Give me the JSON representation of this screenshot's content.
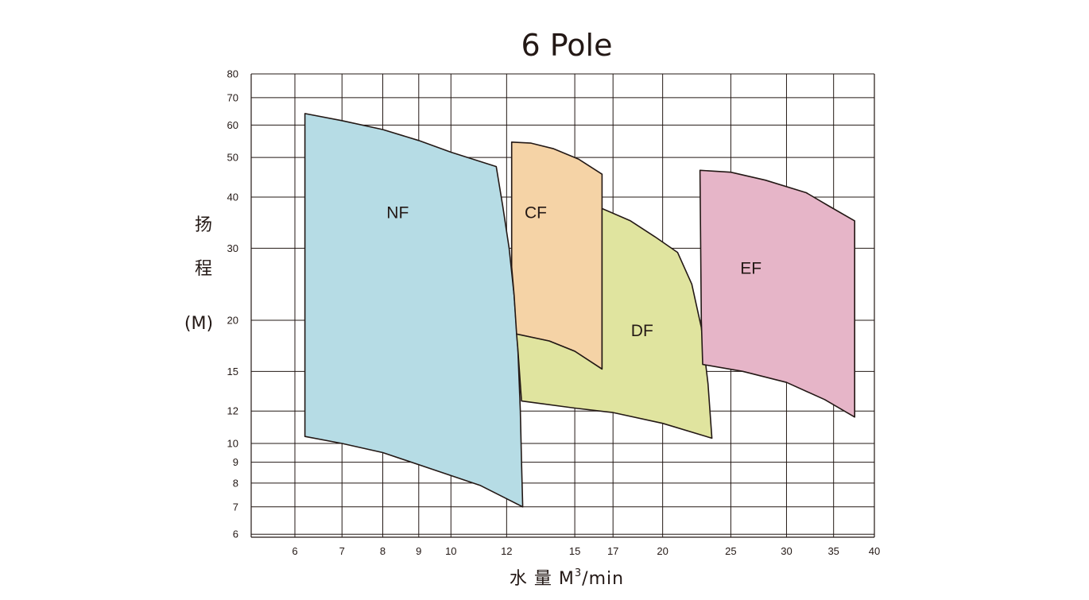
{
  "chart_data": {
    "type": "area",
    "title": "6 Pole",
    "ylabel_chars": [
      "扬",
      "程",
      "(M)"
    ],
    "xlabel": {
      "text": "水 量 M",
      "sup": "3",
      "unit": "/min"
    },
    "x_scale": "log",
    "y_scale": "log",
    "xlim": [
      5.2,
      40
    ],
    "ylim": [
      5.9,
      80
    ],
    "x_ticks": [
      6,
      7,
      8,
      9,
      10,
      12,
      15,
      17,
      20,
      25,
      30,
      35,
      40
    ],
    "y_ticks": [
      6,
      7,
      8,
      9,
      10,
      12,
      15,
      20,
      30,
      40,
      50,
      60,
      70,
      80
    ],
    "grid": true,
    "regions": [
      {
        "label": "NF",
        "fill": "#b6dce5",
        "label_pos": [
          8.4,
          35.5
        ],
        "boundary": [
          [
            6.2,
            64
          ],
          [
            7.0,
            61.5
          ],
          [
            8.0,
            58.5
          ],
          [
            9.0,
            55
          ],
          [
            10.0,
            51.5
          ],
          [
            11.6,
            47.5
          ],
          [
            11.85,
            38
          ],
          [
            12.1,
            30
          ],
          [
            12.3,
            23
          ],
          [
            12.45,
            17
          ],
          [
            12.55,
            12
          ],
          [
            12.6,
            9
          ],
          [
            12.65,
            7.0
          ],
          [
            11.0,
            7.9
          ],
          [
            9.5,
            8.6
          ],
          [
            8.0,
            9.5
          ],
          [
            7.0,
            10.0
          ],
          [
            6.2,
            10.4
          ]
        ]
      },
      {
        "label": "CF",
        "fill": "#f5d3a6",
        "label_pos": [
          13.2,
          35.5
        ],
        "boundary": [
          [
            12.2,
            54.5
          ],
          [
            13.0,
            54.2
          ],
          [
            14.0,
            52.5
          ],
          [
            15.2,
            49.5
          ],
          [
            16.4,
            45.5
          ],
          [
            16.4,
            15.2
          ],
          [
            15.0,
            16.8
          ],
          [
            13.8,
            17.8
          ],
          [
            12.6,
            18.4
          ],
          [
            12.4,
            18.5
          ],
          [
            12.3,
            23
          ],
          [
            12.2,
            27
          ]
        ]
      },
      {
        "label": "DF",
        "fill": "#e0e49f",
        "label_pos": [
          18.7,
          18.3
        ],
        "boundary": [
          [
            16.4,
            37.5
          ],
          [
            18.0,
            35.0
          ],
          [
            19.5,
            32.0
          ],
          [
            21.0,
            29.3
          ],
          [
            22.0,
            24.5
          ],
          [
            22.7,
            19.2
          ],
          [
            23.2,
            14.0
          ],
          [
            23.5,
            10.3
          ],
          [
            20.0,
            11.2
          ],
          [
            17.0,
            11.9
          ],
          [
            15.0,
            12.2
          ],
          [
            12.6,
            12.7
          ],
          [
            12.45,
            17
          ],
          [
            12.4,
            18.5
          ],
          [
            13.8,
            17.8
          ],
          [
            15.0,
            16.8
          ],
          [
            16.4,
            15.2
          ]
        ]
      },
      {
        "label": "EF",
        "fill": "#e6b5c8",
        "label_pos": [
          26.7,
          26.0
        ],
        "boundary": [
          [
            22.6,
            46.5
          ],
          [
            25.0,
            46.0
          ],
          [
            28.0,
            44.0
          ],
          [
            32.0,
            41.0
          ],
          [
            34.5,
            38.0
          ],
          [
            37.5,
            35.0
          ],
          [
            37.5,
            11.6
          ],
          [
            34.0,
            12.8
          ],
          [
            30.0,
            14.1
          ],
          [
            26.0,
            15.0
          ],
          [
            22.8,
            15.6
          ],
          [
            22.7,
            20.0
          ]
        ]
      }
    ]
  }
}
